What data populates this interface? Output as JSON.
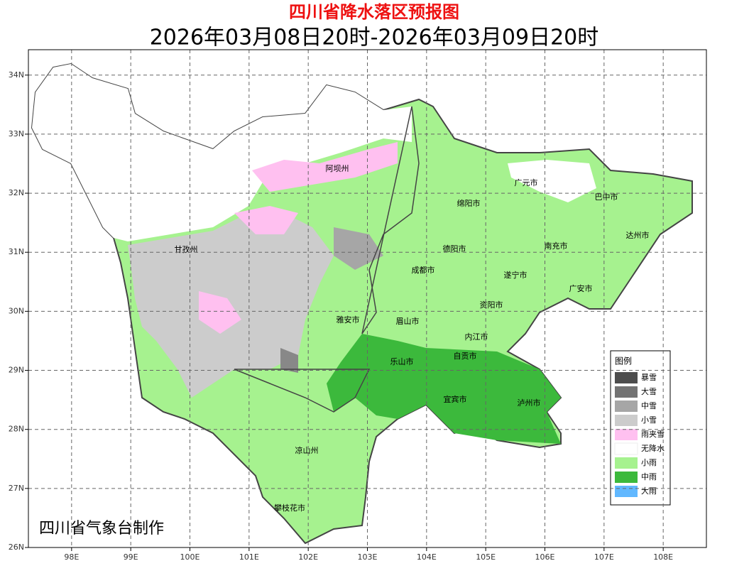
{
  "header": {
    "title": "四川省降水落区预报图",
    "subtitle": "2026年03月08日20时-2026年03月09日20时"
  },
  "map": {
    "xlim": [
      97.27,
      108.73
    ],
    "ylim": [
      26,
      34.43
    ],
    "xticks": [
      {
        "value": 98,
        "label": "98E"
      },
      {
        "value": 99,
        "label": "99E"
      },
      {
        "value": 100,
        "label": "100E"
      },
      {
        "value": 101,
        "label": "101E"
      },
      {
        "value": 102,
        "label": "102E"
      },
      {
        "value": 103,
        "label": "103E"
      },
      {
        "value": 104,
        "label": "104E"
      },
      {
        "value": 105,
        "label": "105E"
      },
      {
        "value": 106,
        "label": "106E"
      },
      {
        "value": 107,
        "label": "107E"
      },
      {
        "value": 108,
        "label": "108E"
      }
    ],
    "yticks": [
      {
        "value": 26,
        "label": "26N"
      },
      {
        "value": 27,
        "label": "27N"
      },
      {
        "value": 28,
        "label": "28N"
      },
      {
        "value": 29,
        "label": "29N"
      },
      {
        "value": 30,
        "label": "30N"
      },
      {
        "value": 31,
        "label": "31N"
      },
      {
        "value": 32,
        "label": "32N"
      },
      {
        "value": 33,
        "label": "33N"
      },
      {
        "value": 34,
        "label": "34N"
      }
    ],
    "grid": true
  },
  "places": [
    "阿坝州",
    "甘孜州",
    "广元市",
    "巴中市",
    "绵阳市",
    "达州市",
    "德阳市",
    "南充市",
    "成都市",
    "遂宁市",
    "广安市",
    "资阳市",
    "雅安市",
    "眉山市",
    "内江市",
    "乐山市",
    "自贡市",
    "宜宾市",
    "泸州市",
    "凉山州",
    "攀枝花市"
  ],
  "legend": {
    "title": "图例",
    "items": [
      {
        "name": "暴雪",
        "color": "#4d4d4d"
      },
      {
        "name": "大雪",
        "color": "#737373"
      },
      {
        "name": "中雪",
        "color": "#a6a6a6"
      },
      {
        "name": "小雪",
        "color": "#cccccc"
      },
      {
        "name": "雨夹雪",
        "color": "#ffc0f0"
      },
      {
        "name": "无降水",
        "color": "#ffffff"
      },
      {
        "name": "小雨",
        "color": "#a6f28f"
      },
      {
        "name": "中雨",
        "color": "#3cb93c"
      },
      {
        "name": "大雨",
        "color": "#61b8ff"
      }
    ]
  },
  "credit": "四川省气象台制作"
}
